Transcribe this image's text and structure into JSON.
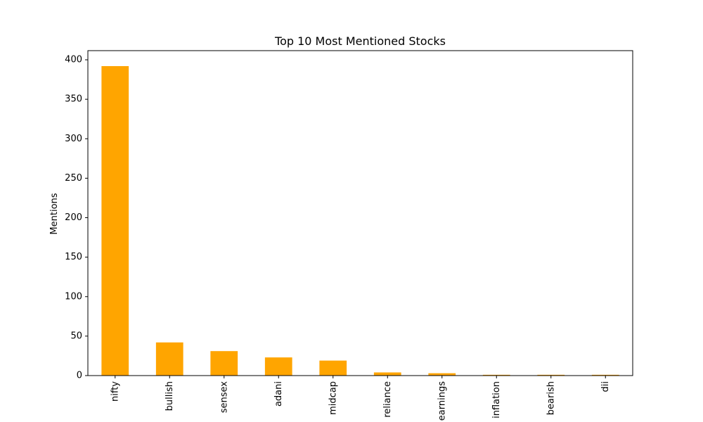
{
  "chart_data": {
    "type": "bar",
    "title": "Top 10 Most Mentioned Stocks",
    "xlabel": "",
    "ylabel": "Mentions",
    "categories": [
      "nifty",
      "bullish",
      "sensex",
      "adani",
      "midcap",
      "reliance",
      "earnings",
      "inflation",
      "bearish",
      "dii"
    ],
    "values": [
      392,
      42,
      31,
      23,
      19,
      4,
      3,
      1,
      1,
      1
    ],
    "ylim": [
      0,
      411.6
    ],
    "yticks": [
      0,
      50,
      100,
      150,
      200,
      250,
      300,
      350,
      400
    ],
    "grid": false,
    "bar_color": "#ffa500"
  }
}
